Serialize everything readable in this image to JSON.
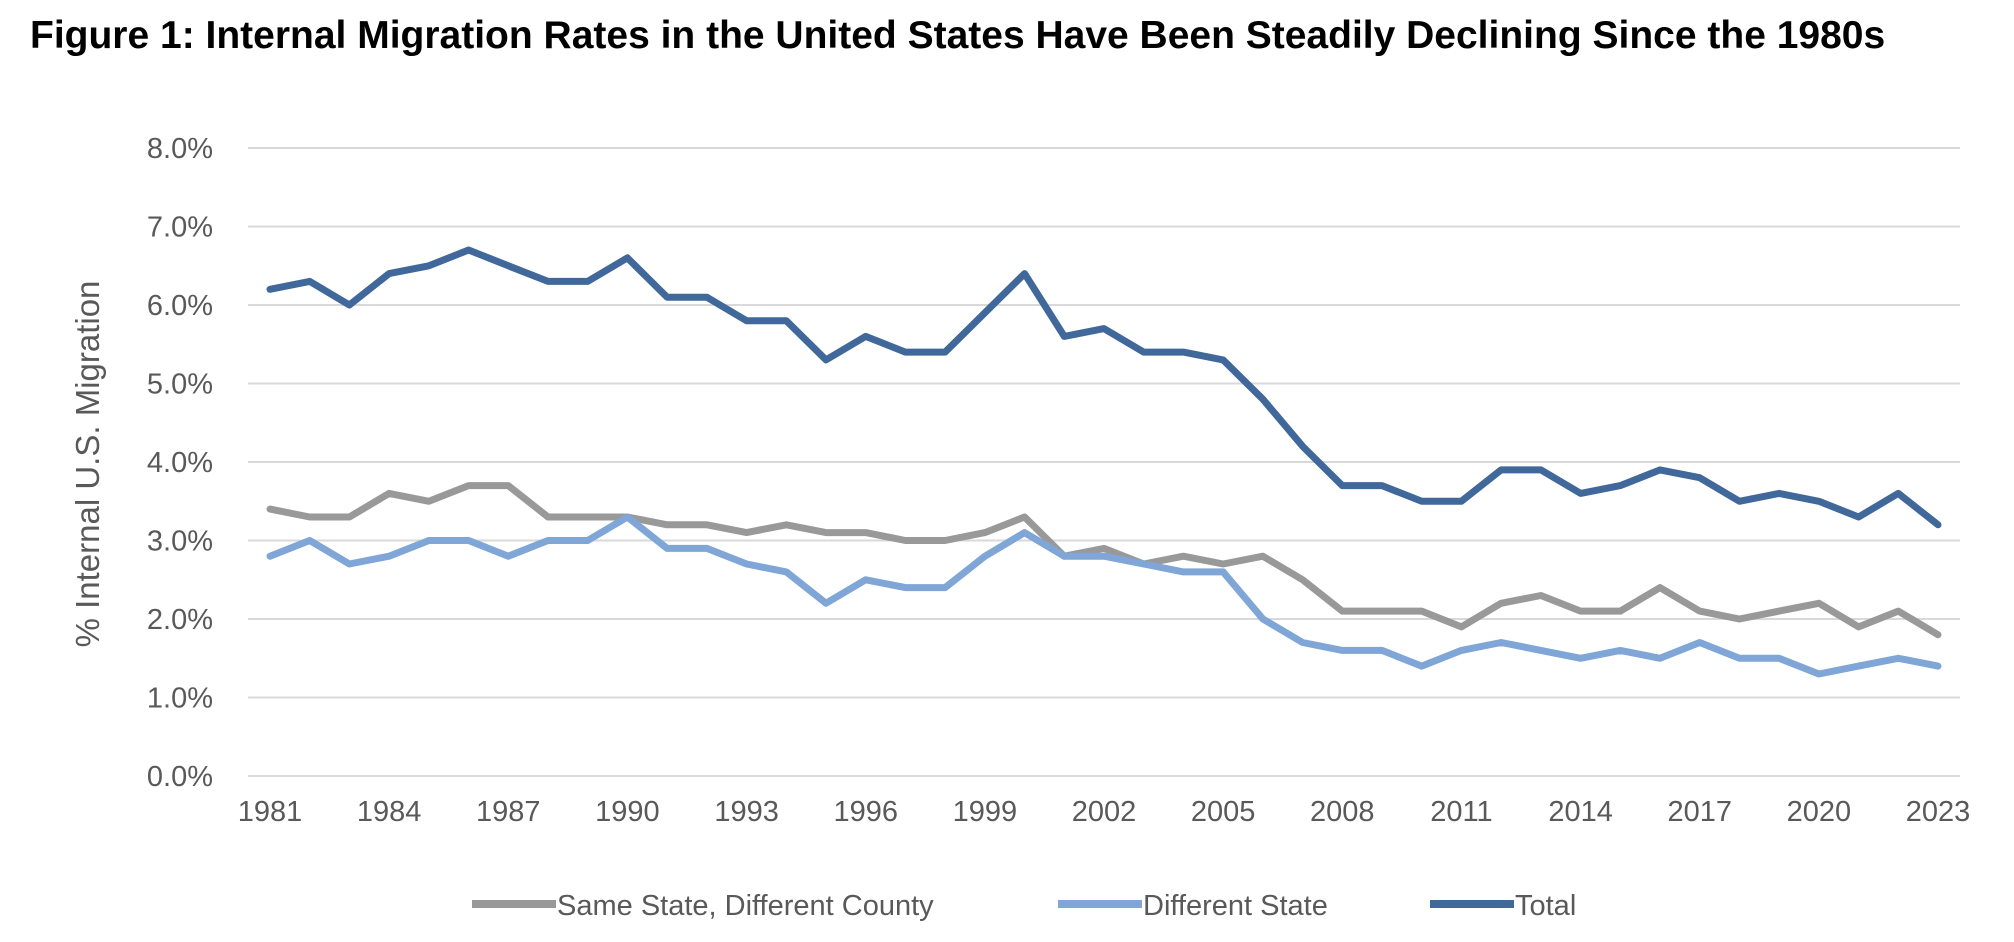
{
  "title": "Figure 1: Internal Migration Rates in the United States Have Been Steadily Declining Since the 1980s",
  "chart_data": {
    "type": "line",
    "title": "Figure 1: Internal Migration Rates in the United States Have Been Steadily Declining Since the 1980s",
    "xlabel": "",
    "ylabel": "% Internal U.S. Migration",
    "ylim": [
      0,
      8
    ],
    "y_ticks": [
      "0.0%",
      "1.0%",
      "2.0%",
      "3.0%",
      "4.0%",
      "5.0%",
      "6.0%",
      "7.0%",
      "8.0%"
    ],
    "x_tick_labels": [
      "1981",
      "1984",
      "1987",
      "1990",
      "1993",
      "1996",
      "1999",
      "2002",
      "2005",
      "2008",
      "2011",
      "2014",
      "2017",
      "2020",
      "2023"
    ],
    "x": [
      1981,
      1982,
      1983,
      1984,
      1985,
      1986,
      1987,
      1988,
      1989,
      1990,
      1991,
      1992,
      1993,
      1994,
      1995,
      1996,
      1997,
      1998,
      1999,
      2000,
      2001,
      2002,
      2003,
      2004,
      2005,
      2006,
      2007,
      2008,
      2009,
      2010,
      2011,
      2012,
      2013,
      2014,
      2015,
      2016,
      2017,
      2018,
      2019,
      2020,
      2021,
      2022,
      2023
    ],
    "grid": true,
    "legend_position": "bottom",
    "series": [
      {
        "name": "Same State, Different County",
        "color": "#999999",
        "values": [
          3.4,
          3.3,
          3.3,
          3.6,
          3.5,
          3.7,
          3.7,
          3.3,
          3.3,
          3.3,
          3.2,
          3.2,
          3.1,
          3.2,
          3.1,
          3.1,
          3.0,
          3.0,
          3.1,
          3.3,
          2.8,
          2.9,
          2.7,
          2.8,
          2.7,
          2.8,
          2.5,
          2.1,
          2.1,
          2.1,
          1.9,
          2.2,
          2.3,
          2.1,
          2.1,
          2.4,
          2.1,
          2.0,
          2.1,
          2.2,
          1.9,
          2.1,
          1.8
        ]
      },
      {
        "name": "Different State",
        "color": "#7fa6d6",
        "values": [
          2.8,
          3.0,
          2.7,
          2.8,
          3.0,
          3.0,
          2.8,
          3.0,
          3.0,
          3.3,
          2.9,
          2.9,
          2.7,
          2.6,
          2.2,
          2.5,
          2.4,
          2.4,
          2.8,
          3.1,
          2.8,
          2.8,
          2.7,
          2.6,
          2.6,
          2.0,
          1.7,
          1.6,
          1.6,
          1.4,
          1.6,
          1.7,
          1.6,
          1.5,
          1.6,
          1.5,
          1.7,
          1.5,
          1.5,
          1.3,
          1.4,
          1.5,
          1.4
        ]
      },
      {
        "name": "Total",
        "color": "#41689a",
        "values": [
          6.2,
          6.3,
          6.0,
          6.4,
          6.5,
          6.7,
          6.5,
          6.3,
          6.3,
          6.6,
          6.1,
          6.1,
          5.8,
          5.8,
          5.3,
          5.6,
          5.4,
          5.4,
          5.9,
          6.4,
          5.6,
          5.7,
          5.4,
          5.4,
          5.3,
          4.8,
          4.2,
          3.7,
          3.7,
          3.5,
          3.5,
          3.9,
          3.9,
          3.6,
          3.7,
          3.9,
          3.8,
          3.5,
          3.6,
          3.5,
          3.3,
          3.6,
          3.2
        ]
      }
    ]
  }
}
